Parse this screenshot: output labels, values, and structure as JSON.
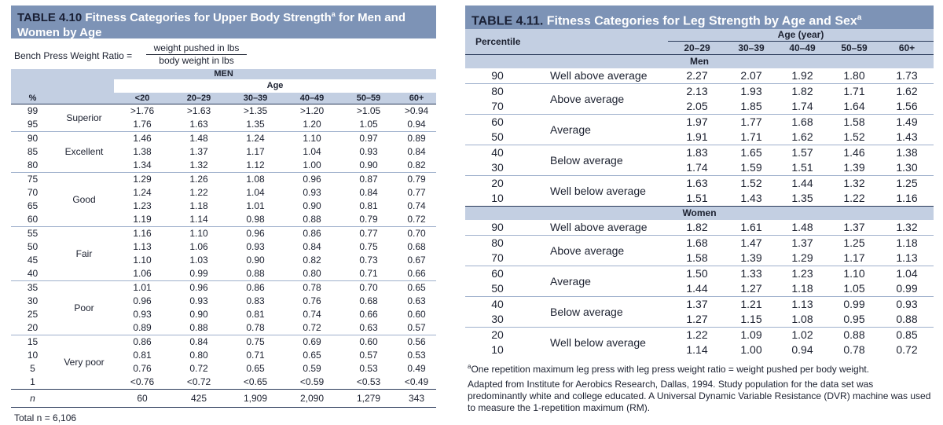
{
  "table410": {
    "title_num": "TABLE 4.10",
    "title_text": "Fitness Categories for Upper Body Strength",
    "title_sup": "a",
    "title_rest": " for Men and Women by Age",
    "formula_lhs": "Bench Press Weight Ratio =",
    "formula_num": "weight pushed in lbs",
    "formula_den": "body weight in lbs",
    "band_label": "MEN",
    "age_label": "Age",
    "col_pct": "%",
    "ages": [
      "<20",
      "20–29",
      "30–39",
      "40–49",
      "50–59",
      "60+"
    ],
    "groups": [
      {
        "category": "Superior",
        "rows": [
          {
            "pct": "99",
            "v": [
              ">1.76",
              ">1.63",
              ">1.35",
              ">1.20",
              ">1.05",
              ">0.94"
            ]
          },
          {
            "pct": "95",
            "v": [
              "1.76",
              "1.63",
              "1.35",
              "1.20",
              "1.05",
              "0.94"
            ]
          }
        ]
      },
      {
        "category": "Excellent",
        "rows": [
          {
            "pct": "90",
            "v": [
              "1.46",
              "1.48",
              "1.24",
              "1.10",
              "0.97",
              "0.89"
            ]
          },
          {
            "pct": "85",
            "v": [
              "1.38",
              "1.37",
              "1.17",
              "1.04",
              "0.93",
              "0.84"
            ]
          },
          {
            "pct": "80",
            "v": [
              "1.34",
              "1.32",
              "1.12",
              "1.00",
              "0.90",
              "0.82"
            ]
          }
        ]
      },
      {
        "category": "Good",
        "rows": [
          {
            "pct": "75",
            "v": [
              "1.29",
              "1.26",
              "1.08",
              "0.96",
              "0.87",
              "0.79"
            ]
          },
          {
            "pct": "70",
            "v": [
              "1.24",
              "1.22",
              "1.04",
              "0.93",
              "0.84",
              "0.77"
            ]
          },
          {
            "pct": "65",
            "v": [
              "1.23",
              "1.18",
              "1.01",
              "0.90",
              "0.81",
              "0.74"
            ]
          },
          {
            "pct": "60",
            "v": [
              "1.19",
              "1.14",
              "0.98",
              "0.88",
              "0.79",
              "0.72"
            ]
          }
        ]
      },
      {
        "category": "Fair",
        "rows": [
          {
            "pct": "55",
            "v": [
              "1.16",
              "1.10",
              "0.96",
              "0.86",
              "0.77",
              "0.70"
            ]
          },
          {
            "pct": "50",
            "v": [
              "1.13",
              "1.06",
              "0.93",
              "0.84",
              "0.75",
              "0.68"
            ]
          },
          {
            "pct": "45",
            "v": [
              "1.10",
              "1.03",
              "0.90",
              "0.82",
              "0.73",
              "0.67"
            ]
          },
          {
            "pct": "40",
            "v": [
              "1.06",
              "0.99",
              "0.88",
              "0.80",
              "0.71",
              "0.66"
            ]
          }
        ]
      },
      {
        "category": "Poor",
        "rows": [
          {
            "pct": "35",
            "v": [
              "1.01",
              "0.96",
              "0.86",
              "0.78",
              "0.70",
              "0.65"
            ]
          },
          {
            "pct": "30",
            "v": [
              "0.96",
              "0.93",
              "0.83",
              "0.76",
              "0.68",
              "0.63"
            ]
          },
          {
            "pct": "25",
            "v": [
              "0.93",
              "0.90",
              "0.81",
              "0.74",
              "0.66",
              "0.60"
            ]
          },
          {
            "pct": "20",
            "v": [
              "0.89",
              "0.88",
              "0.78",
              "0.72",
              "0.63",
              "0.57"
            ]
          }
        ]
      },
      {
        "category": "Very poor",
        "rows": [
          {
            "pct": "15",
            "v": [
              "0.86",
              "0.84",
              "0.75",
              "0.69",
              "0.60",
              "0.56"
            ]
          },
          {
            "pct": "10",
            "v": [
              "0.81",
              "0.80",
              "0.71",
              "0.65",
              "0.57",
              "0.53"
            ]
          },
          {
            "pct": "5",
            "v": [
              "0.76",
              "0.72",
              "0.65",
              "0.59",
              "0.53",
              "0.49"
            ]
          },
          {
            "pct": "1",
            "v": [
              "<0.76",
              "<0.72",
              "<0.65",
              "<0.59",
              "<0.53",
              "<0.49"
            ]
          }
        ]
      }
    ],
    "n_label": "n",
    "n_values": [
      "60",
      "425",
      "1,909",
      "2,090",
      "1,279",
      "343"
    ],
    "total": "Total n = 6,106"
  },
  "table411": {
    "title_num": "TABLE 4.11.",
    "title_text": "Fitness Categories for Leg Strength by Age and Sex",
    "title_sup": "a",
    "col_percentile": "Percentile",
    "age_label": "Age (year)",
    "ages": [
      "20–29",
      "30–39",
      "40–49",
      "50–59",
      "60+"
    ],
    "sections": [
      {
        "label": "Men",
        "groups": [
          {
            "desc": "Well above average",
            "rows": [
              {
                "p": "90",
                "v": [
                  "2.27",
                  "2.07",
                  "1.92",
                  "1.80",
                  "1.73"
                ]
              }
            ]
          },
          {
            "desc": "Above average",
            "rows": [
              {
                "p": "80",
                "v": [
                  "2.13",
                  "1.93",
                  "1.82",
                  "1.71",
                  "1.62"
                ]
              },
              {
                "p": "70",
                "v": [
                  "2.05",
                  "1.85",
                  "1.74",
                  "1.64",
                  "1.56"
                ]
              }
            ]
          },
          {
            "desc": "Average",
            "rows": [
              {
                "p": "60",
                "v": [
                  "1.97",
                  "1.77",
                  "1.68",
                  "1.58",
                  "1.49"
                ]
              },
              {
                "p": "50",
                "v": [
                  "1.91",
                  "1.71",
                  "1.62",
                  "1.52",
                  "1.43"
                ]
              }
            ]
          },
          {
            "desc": "Below average",
            "rows": [
              {
                "p": "40",
                "v": [
                  "1.83",
                  "1.65",
                  "1.57",
                  "1.46",
                  "1.38"
                ]
              },
              {
                "p": "30",
                "v": [
                  "1.74",
                  "1.59",
                  "1.51",
                  "1.39",
                  "1.30"
                ]
              }
            ]
          },
          {
            "desc": "Well below average",
            "rows": [
              {
                "p": "20",
                "v": [
                  "1.63",
                  "1.52",
                  "1.44",
                  "1.32",
                  "1.25"
                ]
              },
              {
                "p": "10",
                "v": [
                  "1.51",
                  "1.43",
                  "1.35",
                  "1.22",
                  "1.16"
                ]
              }
            ]
          }
        ]
      },
      {
        "label": "Women",
        "groups": [
          {
            "desc": "Well above average",
            "rows": [
              {
                "p": "90",
                "v": [
                  "1.82",
                  "1.61",
                  "1.48",
                  "1.37",
                  "1.32"
                ]
              }
            ]
          },
          {
            "desc": "Above average",
            "rows": [
              {
                "p": "80",
                "v": [
                  "1.68",
                  "1.47",
                  "1.37",
                  "1.25",
                  "1.18"
                ]
              },
              {
                "p": "70",
                "v": [
                  "1.58",
                  "1.39",
                  "1.29",
                  "1.17",
                  "1.13"
                ]
              }
            ]
          },
          {
            "desc": "Average",
            "rows": [
              {
                "p": "60",
                "v": [
                  "1.50",
                  "1.33",
                  "1.23",
                  "1.10",
                  "1.04"
                ]
              },
              {
                "p": "50",
                "v": [
                  "1.44",
                  "1.27",
                  "1.18",
                  "1.05",
                  "0.99"
                ]
              }
            ]
          },
          {
            "desc": "Below average",
            "rows": [
              {
                "p": "40",
                "v": [
                  "1.37",
                  "1.21",
                  "1.13",
                  "0.99",
                  "0.93"
                ]
              },
              {
                "p": "30",
                "v": [
                  "1.27",
                  "1.15",
                  "1.08",
                  "0.95",
                  "0.88"
                ]
              }
            ]
          },
          {
            "desc": "Well below average",
            "rows": [
              {
                "p": "20",
                "v": [
                  "1.22",
                  "1.09",
                  "1.02",
                  "0.88",
                  "0.85"
                ]
              },
              {
                "p": "10",
                "v": [
                  "1.14",
                  "1.00",
                  "0.94",
                  "0.78",
                  "0.72"
                ]
              }
            ]
          }
        ]
      }
    ],
    "footnote_sup": "a",
    "footnote": "One repetition maximum leg press with leg press weight ratio = weight pushed per body weight.",
    "source": "Adapted from Institute for Aerobics Research, Dallas, 1994. Study population for the data set was predominantly white and college educated. A Universal Dynamic Variable Resistance (DVR) machine was used to measure the 1-repetition maximum (RM)."
  }
}
